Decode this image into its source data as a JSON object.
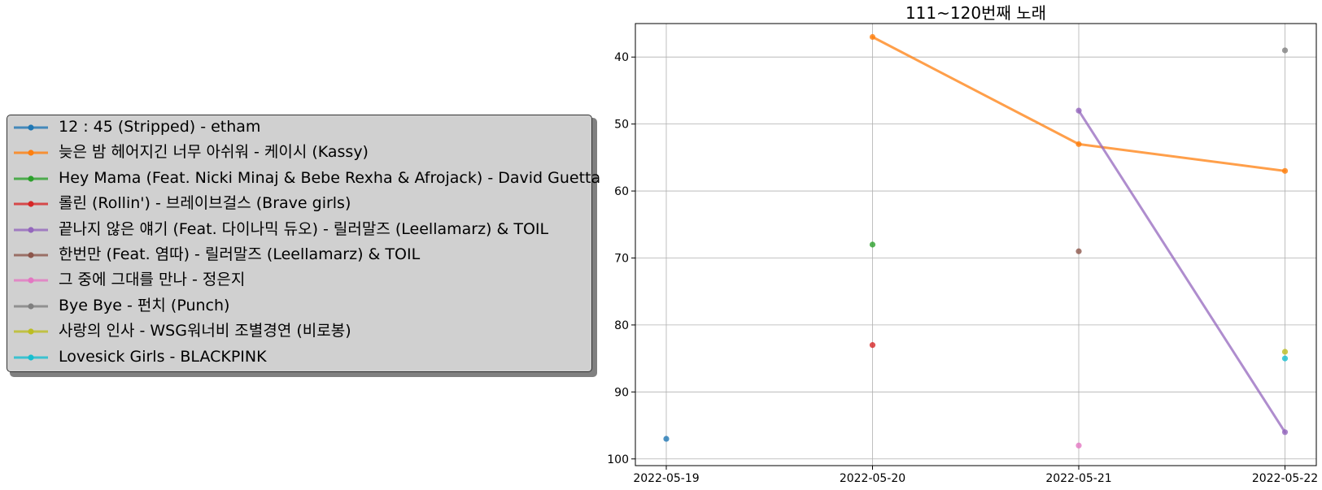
{
  "chart_data": {
    "type": "line",
    "title": "111~120번째 노래",
    "xlabel": "",
    "ylabel": "",
    "categories": [
      "2022-05-19",
      "2022-05-20",
      "2022-05-21",
      "2022-05-22"
    ],
    "ylim": [
      101,
      35
    ],
    "y_inverted": true,
    "yticks": [
      40,
      50,
      60,
      70,
      80,
      90,
      100
    ],
    "grid": true,
    "legend_position": "left, outside plot",
    "series": [
      {
        "name": "12 : 45 (Stripped) - etham",
        "color": "#1f77b4",
        "values": [
          97,
          null,
          null,
          null
        ]
      },
      {
        "name": "늦은 밤 헤어지긴 너무 아쉬워 - 케이시 (Kassy)",
        "color": "#ff7f0e",
        "values": [
          null,
          37,
          53,
          57
        ]
      },
      {
        "name": "Hey Mama (Feat. Nicki Minaj & Bebe Rexha & Afrojack) - David Guetta",
        "color": "#2ca02c",
        "values": [
          null,
          68,
          null,
          null
        ]
      },
      {
        "name": "롤린 (Rollin') - 브레이브걸스 (Brave girls)",
        "color": "#d62728",
        "values": [
          null,
          83,
          null,
          null
        ]
      },
      {
        "name": "끝나지 않은 얘기 (Feat. 다이나믹 듀오) - 릴러말즈 (Leellamarz) & TOIL",
        "color": "#9467bd",
        "values": [
          null,
          null,
          48,
          96
        ]
      },
      {
        "name": "한번만 (Feat. 염따) - 릴러말즈 (Leellamarz) & TOIL",
        "color": "#8c564b",
        "values": [
          null,
          null,
          69,
          null
        ]
      },
      {
        "name": "그 중에 그대를 만나 - 정은지",
        "color": "#e377c2",
        "values": [
          null,
          null,
          98,
          null
        ]
      },
      {
        "name": "Bye Bye - 펀치 (Punch)",
        "color": "#7f7f7f",
        "values": [
          null,
          null,
          null,
          39
        ]
      },
      {
        "name": "사랑의 인사 - WSG워너비 조별경연 (비로봉)",
        "color": "#bcbd22",
        "values": [
          null,
          null,
          null,
          84
        ]
      },
      {
        "name": "Lovesick Girls - BLACKPINK",
        "color": "#17becf",
        "values": [
          null,
          null,
          null,
          85
        ]
      }
    ]
  }
}
